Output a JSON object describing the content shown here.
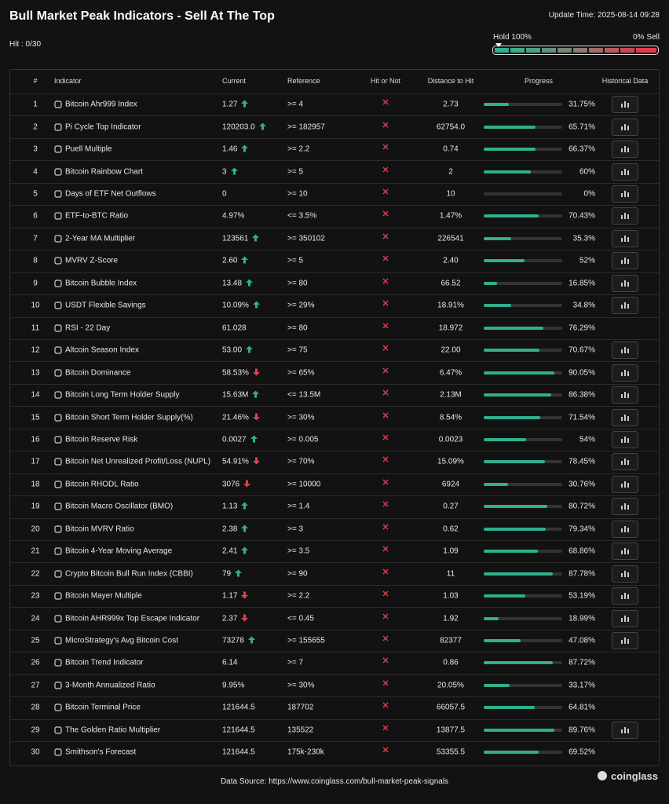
{
  "header": {
    "title": "Bull Market Peak Indicators - Sell At The Top",
    "update_time": "Update Time: 2025-08-14 09:28",
    "hit": "Hit : 0/30",
    "gauge_left": "Hold 100%",
    "gauge_right": "0% Sell"
  },
  "table": {
    "columns": [
      "#",
      "Indicator",
      "Current",
      "Reference",
      "Hit or Not",
      "Distance to Hit",
      "Progress",
      "Historical Data"
    ],
    "rows": [
      {
        "num": 1,
        "indicator": "Bitcoin Ahr999 Index",
        "current": "1.27",
        "trend": "up",
        "reference": ">= 4",
        "hit": false,
        "distance": "2.73",
        "progress": {
          "value": 31.75,
          "label": "31.75%"
        },
        "history": true
      },
      {
        "num": 2,
        "indicator": "Pi Cycle Top Indicator",
        "current": "120203.0",
        "trend": "up",
        "reference": ">= 182957",
        "hit": false,
        "distance": "62754.0",
        "progress": {
          "value": 65.71,
          "label": "65.71%"
        },
        "history": true
      },
      {
        "num": 3,
        "indicator": "Puell Multiple",
        "current": "1.46",
        "trend": "up",
        "reference": ">= 2.2",
        "hit": false,
        "distance": "0.74",
        "progress": {
          "value": 66.37,
          "label": "66.37%"
        },
        "history": true
      },
      {
        "num": 4,
        "indicator": "Bitcoin Rainbow Chart",
        "current": "3",
        "trend": "up",
        "reference": ">= 5",
        "hit": false,
        "distance": "2",
        "progress": {
          "value": 60,
          "label": "60%"
        },
        "history": true
      },
      {
        "num": 5,
        "indicator": "Days of ETF Net Outflows",
        "current": "0",
        "trend": null,
        "reference": ">= 10",
        "hit": false,
        "distance": "10",
        "progress": {
          "value": 0,
          "label": "0%"
        },
        "history": true
      },
      {
        "num": 6,
        "indicator": "ETF-to-BTC Ratio",
        "current": "4.97%",
        "trend": null,
        "reference": "<= 3.5%",
        "hit": false,
        "distance": "1.47%",
        "progress": {
          "value": 70.43,
          "label": "70.43%"
        },
        "history": true
      },
      {
        "num": 7,
        "indicator": "2-Year MA Multiplier",
        "current": "123561",
        "trend": "up",
        "reference": ">= 350102",
        "hit": false,
        "distance": "226541",
        "progress": {
          "value": 35.3,
          "label": "35.3%"
        },
        "history": true
      },
      {
        "num": 8,
        "indicator": "MVRV Z-Score",
        "current": "2.60",
        "trend": "up",
        "reference": ">= 5",
        "hit": false,
        "distance": "2.40",
        "progress": {
          "value": 52,
          "label": "52%"
        },
        "history": true
      },
      {
        "num": 9,
        "indicator": "Bitcoin Bubble Index",
        "current": "13.48",
        "trend": "up",
        "reference": ">= 80",
        "hit": false,
        "distance": "66.52",
        "progress": {
          "value": 16.85,
          "label": "16.85%"
        },
        "history": true
      },
      {
        "num": 10,
        "indicator": "USDT Flexible Savings",
        "current": "10.09%",
        "trend": "up",
        "reference": ">= 29%",
        "hit": false,
        "distance": "18.91%",
        "progress": {
          "value": 34.8,
          "label": "34.8%"
        },
        "history": true
      },
      {
        "num": 11,
        "indicator": "RSI - 22 Day",
        "current": "61.028",
        "trend": null,
        "reference": ">= 80",
        "hit": false,
        "distance": "18.972",
        "progress": {
          "value": 76.29,
          "label": "76.29%"
        },
        "history": false
      },
      {
        "num": 12,
        "indicator": "Altcoin Season Index",
        "current": "53.00",
        "trend": "up",
        "reference": ">= 75",
        "hit": false,
        "distance": "22.00",
        "progress": {
          "value": 70.67,
          "label": "70.67%"
        },
        "history": true
      },
      {
        "num": 13,
        "indicator": "Bitcoin Dominance",
        "current": "58.53%",
        "trend": "down",
        "reference": ">= 65%",
        "hit": false,
        "distance": "6.47%",
        "progress": {
          "value": 90.05,
          "label": "90.05%"
        },
        "history": true
      },
      {
        "num": 14,
        "indicator": "Bitcoin Long Term Holder Supply",
        "current": "15.63M",
        "trend": "up",
        "reference": "<= 13.5M",
        "hit": false,
        "distance": "2.13M",
        "progress": {
          "value": 86.38,
          "label": "86.38%"
        },
        "history": true
      },
      {
        "num": 15,
        "indicator": "Bitcoin Short Term Holder Supply(%)",
        "current": "21.46%",
        "trend": "down",
        "reference": ">= 30%",
        "hit": false,
        "distance": "8.54%",
        "progress": {
          "value": 71.54,
          "label": "71.54%"
        },
        "history": true
      },
      {
        "num": 16,
        "indicator": "Bitcoin Reserve Risk",
        "current": "0.0027",
        "trend": "up",
        "reference": ">= 0.005",
        "hit": false,
        "distance": "0.0023",
        "progress": {
          "value": 54,
          "label": "54%"
        },
        "history": true
      },
      {
        "num": 17,
        "indicator": "Bitcoin Net Unrealized Profit/Loss (NUPL)",
        "current": "54.91%",
        "trend": "down",
        "reference": ">= 70%",
        "hit": false,
        "distance": "15.09%",
        "progress": {
          "value": 78.45,
          "label": "78.45%"
        },
        "history": true
      },
      {
        "num": 18,
        "indicator": "Bitcoin RHODL Ratio",
        "current": "3076",
        "trend": "down",
        "reference": ">= 10000",
        "hit": false,
        "distance": "6924",
        "progress": {
          "value": 30.76,
          "label": "30.76%"
        },
        "history": true
      },
      {
        "num": 19,
        "indicator": "Bitcoin Macro Oscillator (BMO)",
        "current": "1.13",
        "trend": "up",
        "reference": ">= 1.4",
        "hit": false,
        "distance": "0.27",
        "progress": {
          "value": 80.72,
          "label": "80.72%"
        },
        "history": true
      },
      {
        "num": 20,
        "indicator": "Bitcoin MVRV Ratio",
        "current": "2.38",
        "trend": "up",
        "reference": ">= 3",
        "hit": false,
        "distance": "0.62",
        "progress": {
          "value": 79.34,
          "label": "79.34%"
        },
        "history": true
      },
      {
        "num": 21,
        "indicator": "Bitcoin 4-Year Moving Average",
        "current": "2.41",
        "trend": "up",
        "reference": ">= 3.5",
        "hit": false,
        "distance": "1.09",
        "progress": {
          "value": 68.86,
          "label": "68.86%"
        },
        "history": true
      },
      {
        "num": 22,
        "indicator": "Crypto Bitcoin Bull Run Index (CBBI)",
        "current": "79",
        "trend": "up",
        "reference": ">= 90",
        "hit": false,
        "distance": "11",
        "progress": {
          "value": 87.78,
          "label": "87.78%"
        },
        "history": true
      },
      {
        "num": 23,
        "indicator": "Bitcoin Mayer Multiple",
        "current": "1.17",
        "trend": "down",
        "reference": ">= 2.2",
        "hit": false,
        "distance": "1.03",
        "progress": {
          "value": 53.19,
          "label": "53.19%"
        },
        "history": true
      },
      {
        "num": 24,
        "indicator": "Bitcoin AHR999x Top Escape Indicator",
        "current": "2.37",
        "trend": "down",
        "reference": "<= 0.45",
        "hit": false,
        "distance": "1.92",
        "progress": {
          "value": 18.99,
          "label": "18.99%"
        },
        "history": true
      },
      {
        "num": 25,
        "indicator": "MicroStrategy's Avg Bitcoin Cost",
        "current": "73278",
        "trend": "up",
        "reference": ">= 155655",
        "hit": false,
        "distance": "82377",
        "progress": {
          "value": 47.08,
          "label": "47.08%"
        },
        "history": true
      },
      {
        "num": 26,
        "indicator": "Bitcoin Trend Indicator",
        "current": "6.14",
        "trend": null,
        "reference": ">= 7",
        "hit": false,
        "distance": "0.86",
        "progress": {
          "value": 87.72,
          "label": "87.72%"
        },
        "history": false
      },
      {
        "num": 27,
        "indicator": "3-Month Annualized Ratio",
        "current": "9.95%",
        "trend": null,
        "reference": ">= 30%",
        "hit": false,
        "distance": "20.05%",
        "progress": {
          "value": 33.17,
          "label": "33.17%"
        },
        "history": false
      },
      {
        "num": 28,
        "indicator": "Bitcoin Terminal Price",
        "current": "121644.5",
        "trend": null,
        "reference": "187702",
        "hit": false,
        "distance": "66057.5",
        "progress": {
          "value": 64.81,
          "label": "64.81%"
        },
        "history": false
      },
      {
        "num": 29,
        "indicator": "The Golden Ratio Multiplier",
        "current": "121644.5",
        "trend": null,
        "reference": "135522",
        "hit": false,
        "distance": "13877.5",
        "progress": {
          "value": 89.76,
          "label": "89.76%"
        },
        "history": true
      },
      {
        "num": 30,
        "indicator": "Smithson's Forecast",
        "current": "121644.5",
        "trend": null,
        "reference": "175k-230k",
        "hit": false,
        "distance": "53355.5",
        "progress": {
          "value": 69.52,
          "label": "69.52%"
        },
        "history": false
      }
    ]
  },
  "footer": {
    "source": "Data Source: https://www.coinglass.com/bull-market-peak-signals",
    "brand": "coinglass"
  }
}
